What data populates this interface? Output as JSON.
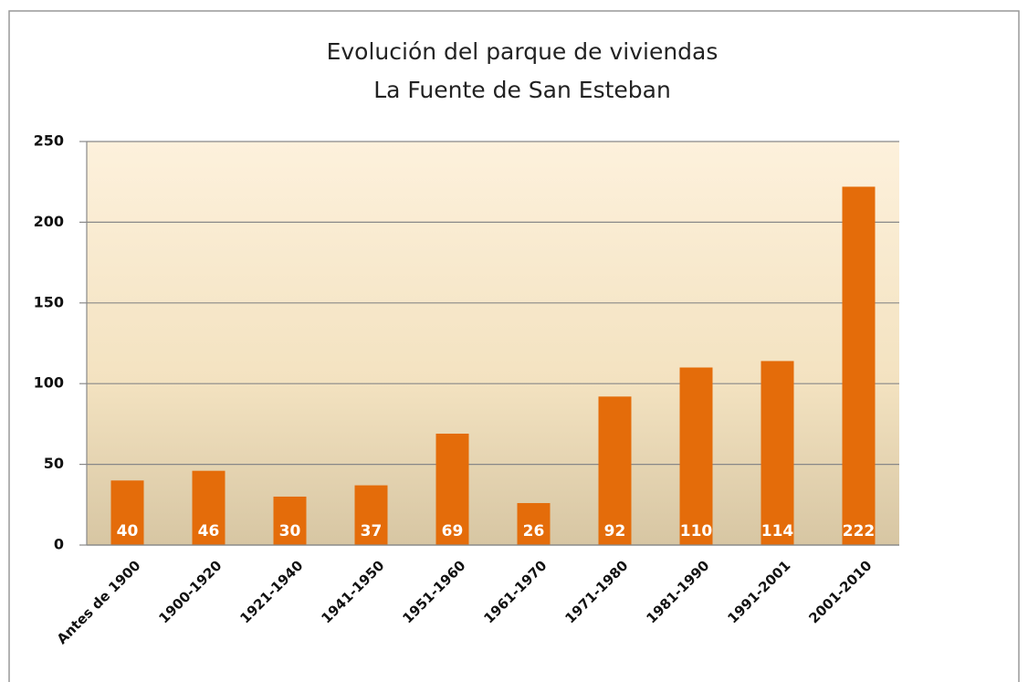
{
  "chart_data": {
    "type": "bar",
    "title": "Evolución del parque de viviendas",
    "subtitle": "La Fuente de San Esteban",
    "categories": [
      "Antes de 1900",
      "1900-1920",
      "1921-1940",
      "1941-1950",
      "1951-1960",
      "1961-1970",
      "1971-1980",
      "1981-1990",
      "1991-2001",
      "2001-2010"
    ],
    "values": [
      40,
      46,
      30,
      37,
      69,
      26,
      92,
      110,
      114,
      222
    ],
    "color": "#e46c0a",
    "ylim": [
      0,
      250
    ],
    "yticks": [
      0,
      50,
      100,
      150,
      200,
      250
    ],
    "grid": true
  }
}
